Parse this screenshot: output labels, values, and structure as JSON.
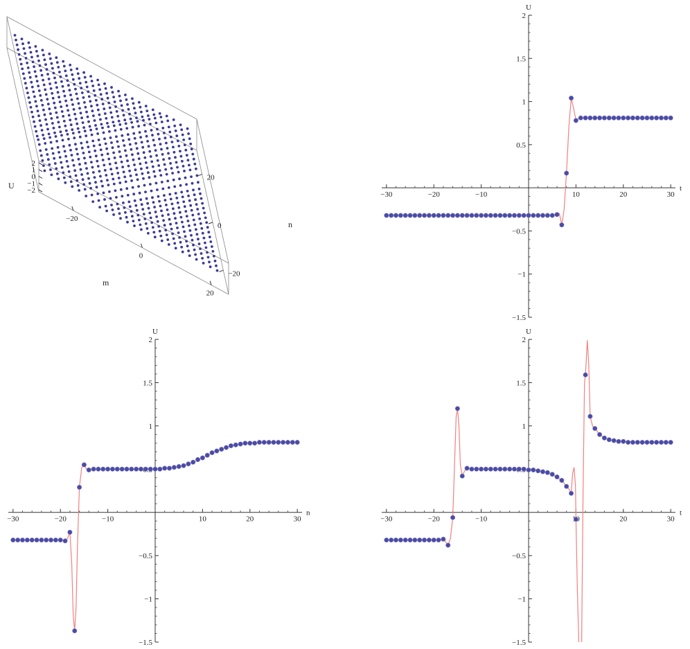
{
  "chart_data": [
    {
      "id": "surface3d",
      "type": "scatter",
      "title": "",
      "xlabel": "m",
      "ylabel": "n",
      "zlabel": "U",
      "x_ticks": [
        "-20",
        "0",
        "20"
      ],
      "y_ticks": [
        "-20",
        "0",
        "20"
      ],
      "z_ticks": [
        "-2",
        "-1",
        "0",
        "1",
        "2"
      ],
      "xlim": [
        -30,
        25
      ],
      "ylim": [
        -30,
        30
      ],
      "zlim": [
        -2.3,
        2.3
      ],
      "marker_color": "#3a3a9a",
      "box_color": "#888888",
      "grid": false
    },
    {
      "id": "plot-t",
      "type": "line",
      "xlabel": "t",
      "ylabel": "U",
      "xlim": [
        -31,
        31
      ],
      "ylim": [
        -1.5,
        2.0
      ],
      "x_ticks": [
        -30,
        -20,
        -10,
        10,
        20,
        30
      ],
      "y_ticks": [
        -1.5,
        -1.0,
        -0.5,
        0.5,
        1.0,
        1.5,
        2.0
      ],
      "point_color": "#4a4aa6",
      "curve_color": "#f08080",
      "points": [
        [
          -30,
          -0.32
        ],
        [
          -29,
          -0.32
        ],
        [
          -28,
          -0.32
        ],
        [
          -27,
          -0.32
        ],
        [
          -26,
          -0.32
        ],
        [
          -25,
          -0.32
        ],
        [
          -24,
          -0.32
        ],
        [
          -23,
          -0.32
        ],
        [
          -22,
          -0.32
        ],
        [
          -21,
          -0.32
        ],
        [
          -20,
          -0.32
        ],
        [
          -19,
          -0.32
        ],
        [
          -18,
          -0.32
        ],
        [
          -17,
          -0.32
        ],
        [
          -16,
          -0.32
        ],
        [
          -15,
          -0.32
        ],
        [
          -14,
          -0.32
        ],
        [
          -13,
          -0.32
        ],
        [
          -12,
          -0.32
        ],
        [
          -11,
          -0.32
        ],
        [
          -10,
          -0.32
        ],
        [
          -9,
          -0.32
        ],
        [
          -8,
          -0.32
        ],
        [
          -7,
          -0.32
        ],
        [
          -6,
          -0.32
        ],
        [
          -5,
          -0.32
        ],
        [
          -4,
          -0.32
        ],
        [
          -3,
          -0.32
        ],
        [
          -2,
          -0.32
        ],
        [
          -1,
          -0.32
        ],
        [
          0,
          -0.32
        ],
        [
          1,
          -0.32
        ],
        [
          2,
          -0.32
        ],
        [
          3,
          -0.32
        ],
        [
          4,
          -0.32
        ],
        [
          5,
          -0.32
        ],
        [
          6,
          -0.31
        ],
        [
          7,
          -0.43
        ],
        [
          8,
          0.17
        ],
        [
          9,
          1.04
        ],
        [
          10,
          0.78
        ],
        [
          11,
          0.81
        ],
        [
          12,
          0.81
        ],
        [
          13,
          0.81
        ],
        [
          14,
          0.81
        ],
        [
          15,
          0.81
        ],
        [
          16,
          0.81
        ],
        [
          17,
          0.81
        ],
        [
          18,
          0.81
        ],
        [
          19,
          0.81
        ],
        [
          20,
          0.81
        ],
        [
          21,
          0.81
        ],
        [
          22,
          0.81
        ],
        [
          23,
          0.81
        ],
        [
          24,
          0.81
        ],
        [
          25,
          0.81
        ],
        [
          26,
          0.81
        ],
        [
          27,
          0.81
        ],
        [
          28,
          0.81
        ],
        [
          29,
          0.81
        ],
        [
          30,
          0.81
        ]
      ],
      "curve": [
        [
          -30,
          -0.32
        ],
        [
          6,
          -0.32
        ],
        [
          6.5,
          -0.3
        ],
        [
          7,
          -0.43
        ],
        [
          7.5,
          -0.25
        ],
        [
          8,
          0.17
        ],
        [
          8.5,
          0.7
        ],
        [
          9,
          1.04
        ],
        [
          9.5,
          0.92
        ],
        [
          10,
          0.78
        ],
        [
          10.5,
          0.8
        ],
        [
          11,
          0.81
        ],
        [
          30,
          0.81
        ]
      ]
    },
    {
      "id": "plot-n",
      "type": "line",
      "xlabel": "n",
      "ylabel": "U",
      "xlim": [
        -31,
        31
      ],
      "ylim": [
        -1.5,
        2.0
      ],
      "x_ticks": [
        -30,
        -20,
        -10,
        10,
        20,
        30
      ],
      "y_ticks": [
        -1.5,
        -1.0,
        -0.5,
        0.5,
        1.0,
        1.5,
        2.0
      ],
      "point_color": "#4a4aa6",
      "curve_color": "#f08080",
      "points": [
        [
          -30,
          -0.32
        ],
        [
          -29,
          -0.32
        ],
        [
          -28,
          -0.32
        ],
        [
          -27,
          -0.32
        ],
        [
          -26,
          -0.32
        ],
        [
          -25,
          -0.32
        ],
        [
          -24,
          -0.32
        ],
        [
          -23,
          -0.32
        ],
        [
          -22,
          -0.32
        ],
        [
          -21,
          -0.32
        ],
        [
          -20,
          -0.32
        ],
        [
          -19,
          -0.33
        ],
        [
          -18,
          -0.23
        ],
        [
          -17,
          -1.37
        ],
        [
          -16,
          0.29
        ],
        [
          -15,
          0.55
        ],
        [
          -14,
          0.49
        ],
        [
          -13,
          0.5
        ],
        [
          -12,
          0.5
        ],
        [
          -11,
          0.5
        ],
        [
          -10,
          0.5
        ],
        [
          -9,
          0.5
        ],
        [
          -8,
          0.5
        ],
        [
          -7,
          0.5
        ],
        [
          -6,
          0.5
        ],
        [
          -5,
          0.5
        ],
        [
          -4,
          0.5
        ],
        [
          -3,
          0.5
        ],
        [
          -2,
          0.5
        ],
        [
          -1,
          0.5
        ],
        [
          0,
          0.5
        ],
        [
          1,
          0.5
        ],
        [
          2,
          0.51
        ],
        [
          3,
          0.51
        ],
        [
          4,
          0.52
        ],
        [
          5,
          0.53
        ],
        [
          6,
          0.54
        ],
        [
          7,
          0.56
        ],
        [
          8,
          0.58
        ],
        [
          9,
          0.61
        ],
        [
          10,
          0.63
        ],
        [
          11,
          0.66
        ],
        [
          12,
          0.69
        ],
        [
          13,
          0.71
        ],
        [
          14,
          0.73
        ],
        [
          15,
          0.75
        ],
        [
          16,
          0.77
        ],
        [
          17,
          0.78
        ],
        [
          18,
          0.79
        ],
        [
          19,
          0.8
        ],
        [
          20,
          0.8
        ],
        [
          21,
          0.8
        ],
        [
          22,
          0.81
        ],
        [
          23,
          0.81
        ],
        [
          24,
          0.81
        ],
        [
          25,
          0.81
        ],
        [
          26,
          0.81
        ],
        [
          27,
          0.81
        ],
        [
          28,
          0.81
        ],
        [
          29,
          0.81
        ],
        [
          30,
          0.81
        ]
      ],
      "curve": [
        [
          -30,
          -0.32
        ],
        [
          -19.5,
          -0.32
        ],
        [
          -19,
          -0.33
        ],
        [
          -18.5,
          -0.3
        ],
        [
          -18,
          -0.23
        ],
        [
          -17.6,
          -0.6
        ],
        [
          -17.3,
          -1.2
        ],
        [
          -17,
          -1.37
        ],
        [
          -16.7,
          -1.1
        ],
        [
          -16.4,
          -0.4
        ],
        [
          -16,
          0.29
        ],
        [
          -15.5,
          0.52
        ],
        [
          -15,
          0.55
        ],
        [
          -14.5,
          0.5
        ],
        [
          -14,
          0.49
        ],
        [
          -13,
          0.5
        ],
        [
          0,
          0.5
        ],
        [
          2,
          0.51
        ],
        [
          4,
          0.52
        ],
        [
          6,
          0.54
        ],
        [
          8,
          0.58
        ],
        [
          10,
          0.63
        ],
        [
          12,
          0.69
        ],
        [
          14,
          0.73
        ],
        [
          16,
          0.77
        ],
        [
          18,
          0.79
        ],
        [
          20,
          0.8
        ],
        [
          22,
          0.81
        ],
        [
          30,
          0.81
        ]
      ]
    },
    {
      "id": "plot-m",
      "type": "line",
      "xlabel": "t",
      "ylabel": "U",
      "xlim": [
        -31,
        31
      ],
      "ylim": [
        -1.5,
        2.0
      ],
      "x_ticks": [
        -30,
        -20,
        -10,
        10,
        20,
        30
      ],
      "y_ticks": [
        -1.5,
        -1.0,
        -0.5,
        0.5,
        1.0,
        1.5,
        2.0
      ],
      "point_color": "#4a4aa6",
      "curve_color": "#f08080",
      "points": [
        [
          -30,
          -0.32
        ],
        [
          -29,
          -0.32
        ],
        [
          -28,
          -0.32
        ],
        [
          -27,
          -0.32
        ],
        [
          -26,
          -0.32
        ],
        [
          -25,
          -0.32
        ],
        [
          -24,
          -0.32
        ],
        [
          -23,
          -0.32
        ],
        [
          -22,
          -0.32
        ],
        [
          -21,
          -0.32
        ],
        [
          -20,
          -0.32
        ],
        [
          -19,
          -0.32
        ],
        [
          -18,
          -0.31
        ],
        [
          -17,
          -0.38
        ],
        [
          -16,
          -0.06
        ],
        [
          -15,
          1.2
        ],
        [
          -14,
          0.42
        ],
        [
          -13,
          0.51
        ],
        [
          -12,
          0.5
        ],
        [
          -11,
          0.5
        ],
        [
          -10,
          0.5
        ],
        [
          -9,
          0.5
        ],
        [
          -8,
          0.5
        ],
        [
          -7,
          0.5
        ],
        [
          -6,
          0.5
        ],
        [
          -5,
          0.5
        ],
        [
          -4,
          0.5
        ],
        [
          -3,
          0.5
        ],
        [
          -2,
          0.5
        ],
        [
          -1,
          0.5
        ],
        [
          0,
          0.49
        ],
        [
          1,
          0.49
        ],
        [
          2,
          0.48
        ],
        [
          3,
          0.47
        ],
        [
          4,
          0.46
        ],
        [
          5,
          0.44
        ],
        [
          6,
          0.41
        ],
        [
          7,
          0.37
        ],
        [
          8,
          0.3
        ],
        [
          9,
          0.22
        ],
        [
          10,
          -0.08
        ],
        [
          11,
          -1.52
        ],
        [
          12,
          1.59
        ],
        [
          13,
          1.11
        ],
        [
          14,
          0.97
        ],
        [
          15,
          0.9
        ],
        [
          16,
          0.86
        ],
        [
          17,
          0.84
        ],
        [
          18,
          0.83
        ],
        [
          19,
          0.82
        ],
        [
          20,
          0.82
        ],
        [
          21,
          0.81
        ],
        [
          22,
          0.81
        ],
        [
          23,
          0.81
        ],
        [
          24,
          0.81
        ],
        [
          25,
          0.81
        ],
        [
          26,
          0.81
        ],
        [
          27,
          0.81
        ],
        [
          28,
          0.81
        ],
        [
          29,
          0.81
        ],
        [
          30,
          0.81
        ]
      ],
      "curve": [
        [
          -30,
          -0.32
        ],
        [
          -18,
          -0.31
        ],
        [
          -17.5,
          -0.34
        ],
        [
          -17,
          -0.38
        ],
        [
          -16.5,
          -0.3
        ],
        [
          -16,
          -0.06
        ],
        [
          -15.6,
          0.6
        ],
        [
          -15.3,
          1.1
        ],
        [
          -15,
          1.2
        ],
        [
          -14.7,
          1.0
        ],
        [
          -14.4,
          0.55
        ],
        [
          -14,
          0.42
        ],
        [
          -13.5,
          0.48
        ],
        [
          -13,
          0.51
        ],
        [
          -12,
          0.5
        ],
        [
          -1,
          0.5
        ],
        [
          2,
          0.48
        ],
        [
          5,
          0.44
        ],
        [
          7,
          0.37
        ],
        [
          8.5,
          0.27
        ],
        [
          9,
          0.22
        ],
        [
          9.3,
          0.45
        ],
        [
          9.6,
          0.52
        ],
        [
          9.9,
          0.3
        ],
        [
          10,
          -0.08
        ],
        [
          10.3,
          -0.9
        ],
        [
          10.6,
          -1.5
        ],
        [
          11,
          -1.52
        ],
        [
          11.2,
          -1.5
        ],
        [
          11.5,
          0.2
        ],
        [
          11.8,
          1.5
        ],
        [
          12,
          1.59
        ],
        [
          12.4,
          1.99
        ],
        [
          12.7,
          1.7
        ],
        [
          13,
          1.11
        ],
        [
          13.5,
          1.0
        ],
        [
          14,
          0.97
        ],
        [
          15,
          0.9
        ],
        [
          16,
          0.86
        ],
        [
          17,
          0.84
        ],
        [
          18,
          0.83
        ],
        [
          20,
          0.82
        ],
        [
          22,
          0.81
        ],
        [
          30,
          0.81
        ]
      ]
    }
  ]
}
